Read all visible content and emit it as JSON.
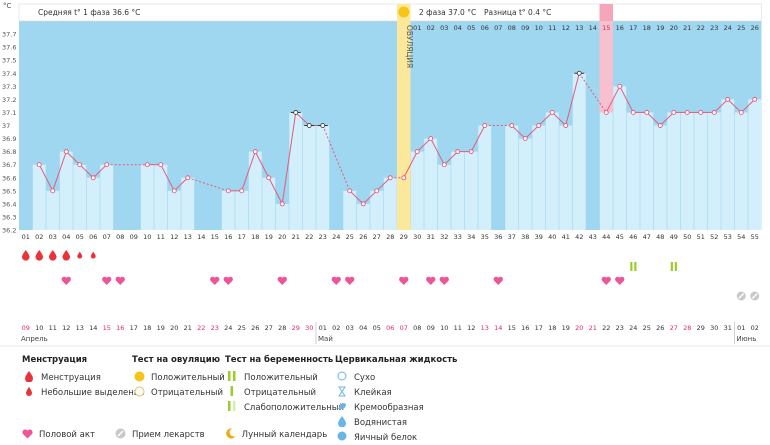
{
  "chart_data": {
    "type": "line",
    "ylabel": "°C",
    "ylim": [
      36.2,
      37.8
    ],
    "yticks": [
      "36.2",
      "36.3",
      "36.4",
      "36.5",
      "36.6",
      "36.7",
      "36.8",
      "36.9",
      "37",
      "37.1",
      "37.2",
      "37.3",
      "37.4",
      "37.5",
      "37.6",
      "37.7",
      "37.8"
    ],
    "phase1_label": "Средняя t° 1 фаза 36.6 °C",
    "phase2_label": "2 фаза 37.0 °C",
    "diff_label": "Разница t° 0.4 °C",
    "ovulation_label": "ОВУЛЯЦИЯ",
    "ovulation_day": 29,
    "cycle_top_labels": [
      "",
      "",
      "",
      "",
      "",
      "",
      "",
      "",
      "",
      "",
      "",
      "",
      "",
      "",
      "",
      "",
      "",
      "",
      "",
      "",
      "",
      "",
      "",
      "",
      "",
      "",
      "",
      "",
      "",
      "01",
      "02",
      "03",
      "04",
      "05",
      "06",
      "07",
      "08",
      "09",
      "10",
      "11",
      "12",
      "13",
      "14",
      "15",
      "16",
      "17",
      "18",
      "19",
      "20",
      "21",
      "22",
      "23",
      "24",
      "25",
      "26"
    ],
    "highlight_top_index": 44,
    "day_numbers": [
      "01",
      "02",
      "03",
      "04",
      "05",
      "06",
      "07",
      "08",
      "09",
      "10",
      "11",
      "12",
      "13",
      "14",
      "15",
      "16",
      "17",
      "18",
      "19",
      "20",
      "21",
      "22",
      "23",
      "24",
      "25",
      "26",
      "27",
      "28",
      "29",
      "30",
      "31",
      "32",
      "33",
      "34",
      "35",
      "36",
      "37",
      "38",
      "39",
      "40",
      "41",
      "42",
      "43",
      "44",
      "45",
      "46",
      "47",
      "48",
      "49",
      "50",
      "51",
      "52",
      "53",
      "54",
      "55"
    ],
    "x": [
      1,
      2,
      3,
      4,
      5,
      6,
      7,
      8,
      9,
      10,
      11,
      12,
      13,
      14,
      15,
      16,
      17,
      18,
      19,
      20,
      21,
      22,
      23,
      24,
      25,
      26,
      27,
      28,
      29,
      30,
      31,
      32,
      33,
      34,
      35,
      36,
      37,
      38,
      39,
      40,
      41,
      42,
      43,
      44,
      45,
      46,
      47,
      48,
      49,
      50,
      51,
      52,
      53,
      54,
      55
    ],
    "values": [
      null,
      36.7,
      36.5,
      36.8,
      36.7,
      36.6,
      36.7,
      null,
      null,
      36.7,
      36.7,
      36.5,
      36.6,
      null,
      null,
      36.5,
      36.5,
      36.8,
      36.6,
      36.4,
      37.1,
      37.0,
      37.0,
      null,
      36.5,
      36.4,
      36.5,
      36.6,
      36.6,
      36.8,
      36.9,
      36.7,
      36.8,
      36.8,
      37.0,
      null,
      37.0,
      36.9,
      37.0,
      37.1,
      37.0,
      37.4,
      null,
      37.1,
      37.3,
      37.1,
      37.1,
      37.0,
      37.1,
      37.1,
      37.1,
      37.1,
      37.2,
      37.1,
      37.2
    ],
    "no_bar_days": [
      1,
      8,
      9,
      14,
      15,
      24,
      36,
      43
    ],
    "open_marker_days": [
      21,
      22,
      23,
      42
    ],
    "dashed_segments": [
      [
        7,
        10
      ],
      [
        13,
        16
      ],
      [
        23,
        25
      ],
      [
        28,
        29
      ],
      [
        41,
        44
      ]
    ],
    "menstruation_days": [
      1,
      2,
      3,
      4,
      5,
      6
    ],
    "menstruation_small_days": [
      5,
      6
    ],
    "sex_days": [
      4,
      7,
      8,
      15,
      16,
      20,
      24,
      25,
      29,
      31,
      32,
      36,
      44,
      45
    ],
    "preg_test_positive_days": [
      46,
      49
    ],
    "meds_days": [
      54,
      55
    ],
    "dates": [
      "09",
      "10",
      "11",
      "12",
      "13",
      "14",
      "15",
      "16",
      "17",
      "18",
      "19",
      "20",
      "21",
      "22",
      "23",
      "24",
      "25",
      "26",
      "27",
      "28",
      "29",
      "30",
      "01",
      "02",
      "03",
      "04",
      "05",
      "06",
      "07",
      "08",
      "09",
      "10",
      "11",
      "12",
      "13",
      "14",
      "15",
      "16",
      "17",
      "18",
      "19",
      "20",
      "21",
      "22",
      "23",
      "24",
      "25",
      "26",
      "27",
      "28",
      "29",
      "30",
      "31",
      "01",
      "02"
    ],
    "red_dates_idx": [
      0,
      6,
      7,
      13,
      14,
      20,
      21,
      27,
      28,
      34,
      35,
      41,
      42,
      48,
      49
    ],
    "month_labels": [
      {
        "text": "Апрель",
        "day": 1
      },
      {
        "text": "Май",
        "day": 23
      },
      {
        "text": "Июнь",
        "day": 54
      }
    ],
    "colors": {
      "bar": "#d4effc",
      "bg": "#9ed7ef",
      "line": "#e45a7d",
      "ovulation": "#fbe89a",
      "highlight": "#f6a6ba",
      "heart": "#ee5498",
      "drop": "#e8333b",
      "test": "#9ccc2a"
    }
  },
  "legend": {
    "menstruation": {
      "title": "Менструация",
      "items": [
        "Менструация",
        "Небольшие выделения"
      ]
    },
    "ovulation_test": {
      "title": "Тест на овуляцию",
      "items": [
        "Положительный",
        "Отрицательный"
      ]
    },
    "pregnancy_test": {
      "title": "Тест на беременность",
      "items": [
        "Положительный",
        "Отрицательный",
        "Слабоположительный"
      ]
    },
    "cervical": {
      "title": "Цервикальная жидкость",
      "items": [
        "Сухо",
        "Клейкая",
        "Кремообразная",
        "Водянистая",
        "Яичный белок"
      ]
    },
    "bottom": [
      "Половой акт",
      "Прием лекарств",
      "Лунный календарь"
    ]
  }
}
